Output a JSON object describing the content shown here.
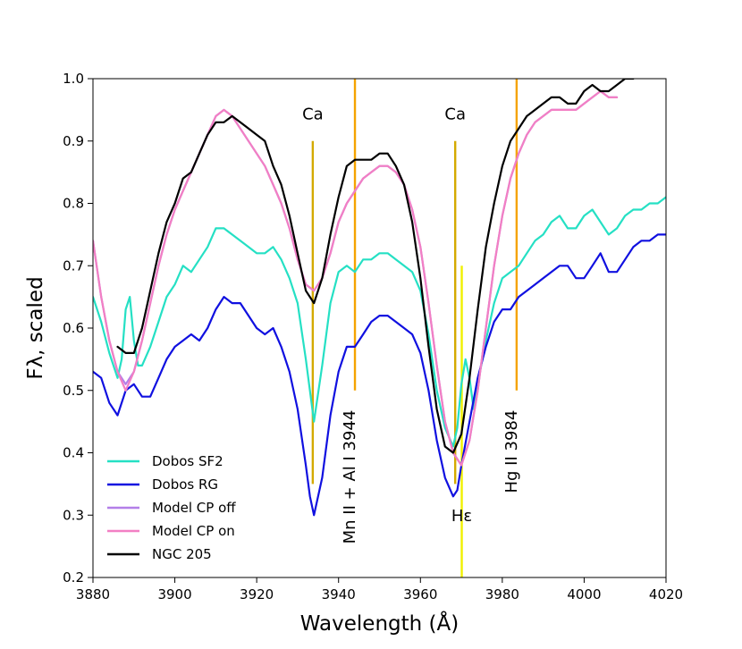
{
  "chart_data": {
    "type": "line",
    "xlabel": "Wavelength (Å)",
    "ylabel": "Fλ, scaled",
    "xlim": [
      3880,
      4020
    ],
    "ylim": [
      0.2,
      1.0
    ],
    "xticks": [
      3880,
      3900,
      3920,
      3940,
      3960,
      3980,
      4000,
      4020
    ],
    "xtick_labels": [
      "3880",
      "3900",
      "3920",
      "3940",
      "3960",
      "3980",
      "4000",
      "4020"
    ],
    "yticks": [
      0.2,
      0.3,
      0.4,
      0.5,
      0.6,
      0.7,
      0.8,
      0.9,
      1.0
    ],
    "ytick_labels": [
      "0.2",
      "0.3",
      "0.4",
      "0.5",
      "0.6",
      "0.7",
      "0.8",
      "0.9",
      "1.0"
    ],
    "series": [
      {
        "name": "Dobos SF2",
        "color": "#25e0c4",
        "x": [
          3880,
          3882,
          3884,
          3886,
          3887,
          3888,
          3889,
          3890,
          3891,
          3892,
          3894,
          3896,
          3898,
          3900,
          3902,
          3904,
          3906,
          3908,
          3910,
          3912,
          3914,
          3916,
          3918,
          3920,
          3922,
          3924,
          3926,
          3928,
          3930,
          3932,
          3934,
          3936,
          3938,
          3940,
          3942,
          3944,
          3946,
          3948,
          3950,
          3952,
          3954,
          3956,
          3958,
          3960,
          3962,
          3964,
          3966,
          3968,
          3969,
          3970,
          3971,
          3972,
          3973,
          3974,
          3976,
          3978,
          3980,
          3982,
          3984,
          3986,
          3988,
          3990,
          3992,
          3994,
          3996,
          3998,
          4000,
          4002,
          4004,
          4006,
          4008,
          4010,
          4012,
          4014,
          4016,
          4018,
          4020
        ],
        "y": [
          0.65,
          0.61,
          0.56,
          0.52,
          0.55,
          0.63,
          0.65,
          0.58,
          0.54,
          0.54,
          0.57,
          0.61,
          0.65,
          0.67,
          0.7,
          0.69,
          0.71,
          0.73,
          0.76,
          0.76,
          0.75,
          0.74,
          0.73,
          0.72,
          0.72,
          0.73,
          0.71,
          0.68,
          0.64,
          0.55,
          0.45,
          0.54,
          0.64,
          0.69,
          0.7,
          0.69,
          0.71,
          0.71,
          0.72,
          0.72,
          0.71,
          0.7,
          0.69,
          0.66,
          0.59,
          0.5,
          0.44,
          0.41,
          0.44,
          0.51,
          0.55,
          0.52,
          0.47,
          0.51,
          0.58,
          0.64,
          0.68,
          0.69,
          0.7,
          0.72,
          0.74,
          0.75,
          0.77,
          0.78,
          0.76,
          0.76,
          0.78,
          0.79,
          0.77,
          0.75,
          0.76,
          0.78,
          0.79,
          0.79,
          0.8,
          0.8,
          0.81
        ]
      },
      {
        "name": "Dobos RG",
        "color": "#1010e0",
        "x": [
          3880,
          3882,
          3884,
          3886,
          3888,
          3890,
          3892,
          3894,
          3896,
          3898,
          3900,
          3902,
          3904,
          3906,
          3908,
          3910,
          3912,
          3914,
          3916,
          3918,
          3920,
          3922,
          3924,
          3926,
          3928,
          3930,
          3932,
          3933,
          3934,
          3936,
          3938,
          3940,
          3942,
          3944,
          3946,
          3948,
          3950,
          3952,
          3954,
          3956,
          3958,
          3960,
          3962,
          3964,
          3966,
          3968,
          3969,
          3970,
          3972,
          3974,
          3976,
          3978,
          3980,
          3982,
          3984,
          3986,
          3988,
          3990,
          3992,
          3994,
          3996,
          3998,
          4000,
          4002,
          4004,
          4006,
          4008,
          4010,
          4012,
          4014,
          4016,
          4018,
          4020
        ],
        "y": [
          0.53,
          0.52,
          0.48,
          0.46,
          0.5,
          0.51,
          0.49,
          0.49,
          0.52,
          0.55,
          0.57,
          0.58,
          0.59,
          0.58,
          0.6,
          0.63,
          0.65,
          0.64,
          0.64,
          0.62,
          0.6,
          0.59,
          0.6,
          0.57,
          0.53,
          0.47,
          0.38,
          0.33,
          0.3,
          0.36,
          0.46,
          0.53,
          0.57,
          0.57,
          0.59,
          0.61,
          0.62,
          0.62,
          0.61,
          0.6,
          0.59,
          0.56,
          0.5,
          0.42,
          0.36,
          0.33,
          0.34,
          0.38,
          0.45,
          0.52,
          0.57,
          0.61,
          0.63,
          0.63,
          0.65,
          0.66,
          0.67,
          0.68,
          0.69,
          0.7,
          0.7,
          0.68,
          0.68,
          0.7,
          0.72,
          0.69,
          0.69,
          0.71,
          0.73,
          0.74,
          0.74,
          0.75,
          0.75
        ]
      },
      {
        "name": "Model CP off",
        "color": "#b37fe8",
        "x": [
          3880,
          3882,
          3884,
          3886,
          3888,
          3890,
          3892,
          3894,
          3896,
          3898,
          3900,
          3902,
          3904,
          3906,
          3908,
          3910,
          3912,
          3914,
          3916,
          3918,
          3920,
          3922,
          3924,
          3926,
          3928,
          3930,
          3932,
          3934,
          3936,
          3938,
          3940,
          3942,
          3944,
          3946,
          3948,
          3950,
          3952,
          3954,
          3956,
          3958,
          3960,
          3962,
          3964,
          3966,
          3968,
          3970,
          3972,
          3974,
          3976,
          3978,
          3980,
          3982,
          3984,
          3986,
          3988,
          3990,
          3992,
          3994,
          3996,
          3998,
          4000,
          4002,
          4004,
          4006,
          4008
        ],
        "y": [
          0.74,
          0.65,
          0.58,
          0.53,
          0.51,
          0.53,
          0.58,
          0.64,
          0.7,
          0.75,
          0.79,
          0.82,
          0.85,
          0.88,
          0.91,
          0.94,
          0.95,
          0.94,
          0.92,
          0.9,
          0.88,
          0.86,
          0.83,
          0.8,
          0.76,
          0.71,
          0.67,
          0.66,
          0.68,
          0.72,
          0.77,
          0.8,
          0.82,
          0.84,
          0.85,
          0.86,
          0.86,
          0.85,
          0.83,
          0.79,
          0.73,
          0.64,
          0.54,
          0.45,
          0.4,
          0.38,
          0.42,
          0.5,
          0.6,
          0.7,
          0.78,
          0.84,
          0.88,
          0.91,
          0.93,
          0.94,
          0.95,
          0.95,
          0.95,
          0.95,
          0.96,
          0.97,
          0.98,
          0.97,
          0.97
        ]
      },
      {
        "name": "Model CP on",
        "color": "#f27fc4",
        "x": [
          3880,
          3882,
          3884,
          3886,
          3888,
          3890,
          3892,
          3894,
          3896,
          3898,
          3900,
          3902,
          3904,
          3906,
          3908,
          3910,
          3912,
          3914,
          3916,
          3918,
          3920,
          3922,
          3924,
          3926,
          3928,
          3930,
          3932,
          3934,
          3936,
          3938,
          3940,
          3942,
          3944,
          3946,
          3948,
          3950,
          3952,
          3954,
          3956,
          3958,
          3960,
          3962,
          3964,
          3966,
          3968,
          3970,
          3972,
          3974,
          3976,
          3978,
          3980,
          3982,
          3984,
          3986,
          3988,
          3990,
          3992,
          3994,
          3996,
          3998,
          4000,
          4002,
          4004,
          4006,
          4008
        ],
        "y": [
          0.74,
          0.65,
          0.58,
          0.53,
          0.5,
          0.53,
          0.58,
          0.64,
          0.7,
          0.75,
          0.79,
          0.82,
          0.85,
          0.88,
          0.91,
          0.94,
          0.95,
          0.94,
          0.92,
          0.9,
          0.88,
          0.86,
          0.83,
          0.8,
          0.76,
          0.71,
          0.67,
          0.66,
          0.68,
          0.72,
          0.77,
          0.8,
          0.82,
          0.84,
          0.85,
          0.86,
          0.86,
          0.85,
          0.83,
          0.79,
          0.73,
          0.64,
          0.54,
          0.45,
          0.4,
          0.38,
          0.42,
          0.5,
          0.6,
          0.7,
          0.78,
          0.84,
          0.88,
          0.91,
          0.93,
          0.94,
          0.95,
          0.95,
          0.95,
          0.95,
          0.96,
          0.97,
          0.98,
          0.97,
          0.97
        ]
      },
      {
        "name": "NGC 205",
        "color": "#000000",
        "x": [
          3886,
          3888,
          3890,
          3892,
          3894,
          3896,
          3898,
          3900,
          3902,
          3904,
          3906,
          3908,
          3910,
          3912,
          3914,
          3916,
          3918,
          3920,
          3922,
          3924,
          3926,
          3928,
          3930,
          3932,
          3934,
          3936,
          3938,
          3940,
          3942,
          3944,
          3946,
          3948,
          3950,
          3952,
          3954,
          3956,
          3958,
          3960,
          3962,
          3964,
          3966,
          3968,
          3970,
          3972,
          3974,
          3976,
          3978,
          3980,
          3982,
          3984,
          3986,
          3988,
          3990,
          3992,
          3994,
          3996,
          3998,
          4000,
          4002,
          4004,
          4006,
          4008,
          4010,
          4012
        ],
        "y": [
          0.57,
          0.56,
          0.56,
          0.6,
          0.66,
          0.72,
          0.77,
          0.8,
          0.84,
          0.85,
          0.88,
          0.91,
          0.93,
          0.93,
          0.94,
          0.93,
          0.92,
          0.91,
          0.9,
          0.86,
          0.83,
          0.78,
          0.72,
          0.66,
          0.64,
          0.68,
          0.75,
          0.81,
          0.86,
          0.87,
          0.87,
          0.87,
          0.88,
          0.88,
          0.86,
          0.83,
          0.77,
          0.68,
          0.57,
          0.47,
          0.41,
          0.4,
          0.43,
          0.52,
          0.63,
          0.73,
          0.8,
          0.86,
          0.9,
          0.92,
          0.94,
          0.95,
          0.96,
          0.97,
          0.97,
          0.96,
          0.96,
          0.98,
          0.99,
          0.98,
          0.98,
          0.99,
          1.0,
          1.0
        ]
      }
    ],
    "markers": [
      {
        "x": 3933.7,
        "y0": 0.35,
        "y1": 0.9,
        "color": "#d4aa00"
      },
      {
        "x": 3944.0,
        "y0": 0.5,
        "y1": 1.0,
        "color": "#f5a300"
      },
      {
        "x": 3968.5,
        "y0": 0.35,
        "y1": 0.9,
        "color": "#d4aa00"
      },
      {
        "x": 3970.1,
        "y0": 0.2,
        "y1": 0.7,
        "color": "#f0f000"
      },
      {
        "x": 3983.5,
        "y0": 0.5,
        "y1": 1.0,
        "color": "#f5a300"
      }
    ],
    "annotations": [
      {
        "text": "Ca",
        "x": 3933.7,
        "y": 0.935,
        "rotate": 0
      },
      {
        "text": "Ca",
        "x": 3968.5,
        "y": 0.935,
        "rotate": 0
      },
      {
        "text": "Mn II + Al I 3944",
        "x": 3944.0,
        "y": 0.46,
        "rotate": -90
      },
      {
        "text": "Hε",
        "x": 3970.1,
        "y": 0.29,
        "rotate": 0
      },
      {
        "text": "Hg II 3984",
        "x": 3983.5,
        "y": 0.46,
        "rotate": -90
      }
    ],
    "legend_position": "lower-left"
  }
}
